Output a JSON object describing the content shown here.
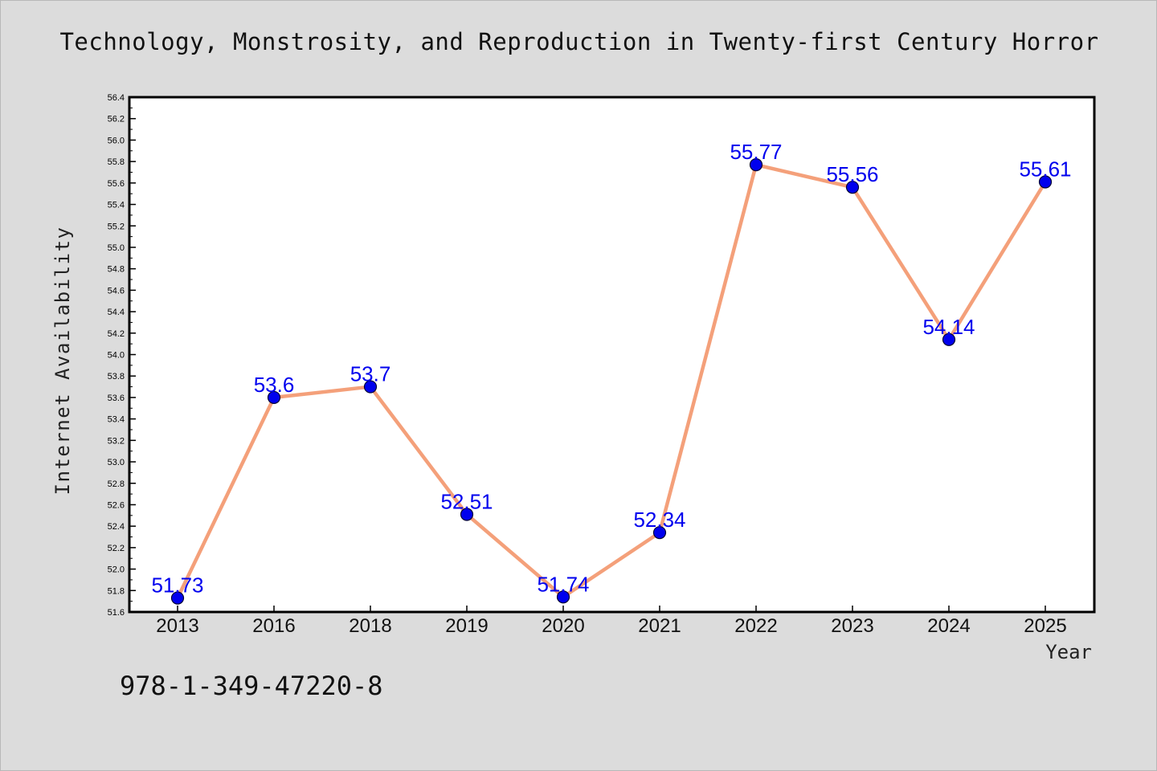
{
  "chart_data": {
    "type": "line",
    "title": "Technology, Monstrosity, and Reproduction in Twenty-first Century Horror",
    "xlabel": "Year",
    "ylabel": "Internet Availability",
    "categories": [
      "2013",
      "2016",
      "2018",
      "2019",
      "2020",
      "2021",
      "2022",
      "2023",
      "2024",
      "2025"
    ],
    "series": [
      {
        "values": [
          51.73,
          53.6,
          53.7,
          52.51,
          51.74,
          52.34,
          55.77,
          55.56,
          54.14,
          55.61
        ],
        "labels": [
          "51.73",
          "53.6",
          "53.7",
          "52.51",
          "51.74",
          "52.34",
          "55.77",
          "55.56",
          "54.14",
          "55.61"
        ]
      }
    ],
    "ylim": [
      51.6,
      56.4
    ],
    "yticks": [
      "51.6",
      "51.8",
      "52.0",
      "52.2",
      "52.4",
      "52.6",
      "52.8",
      "53.0",
      "53.2",
      "53.4",
      "53.6",
      "53.8",
      "54.0",
      "54.2",
      "54.4",
      "54.6",
      "54.8",
      "55.0",
      "55.2",
      "55.4",
      "55.6",
      "55.8",
      "56.0",
      "56.2",
      "56.4"
    ],
    "grid": false,
    "legend": "none",
    "colors": {
      "line": "#f4a07a",
      "marker": "#0000ee",
      "marker_edge": "#000033",
      "data_label": "#0000ee",
      "plot_background": "#ffffff",
      "figure_background": "#dcdcdc"
    }
  },
  "footnote": "978-1-349-47220-8"
}
